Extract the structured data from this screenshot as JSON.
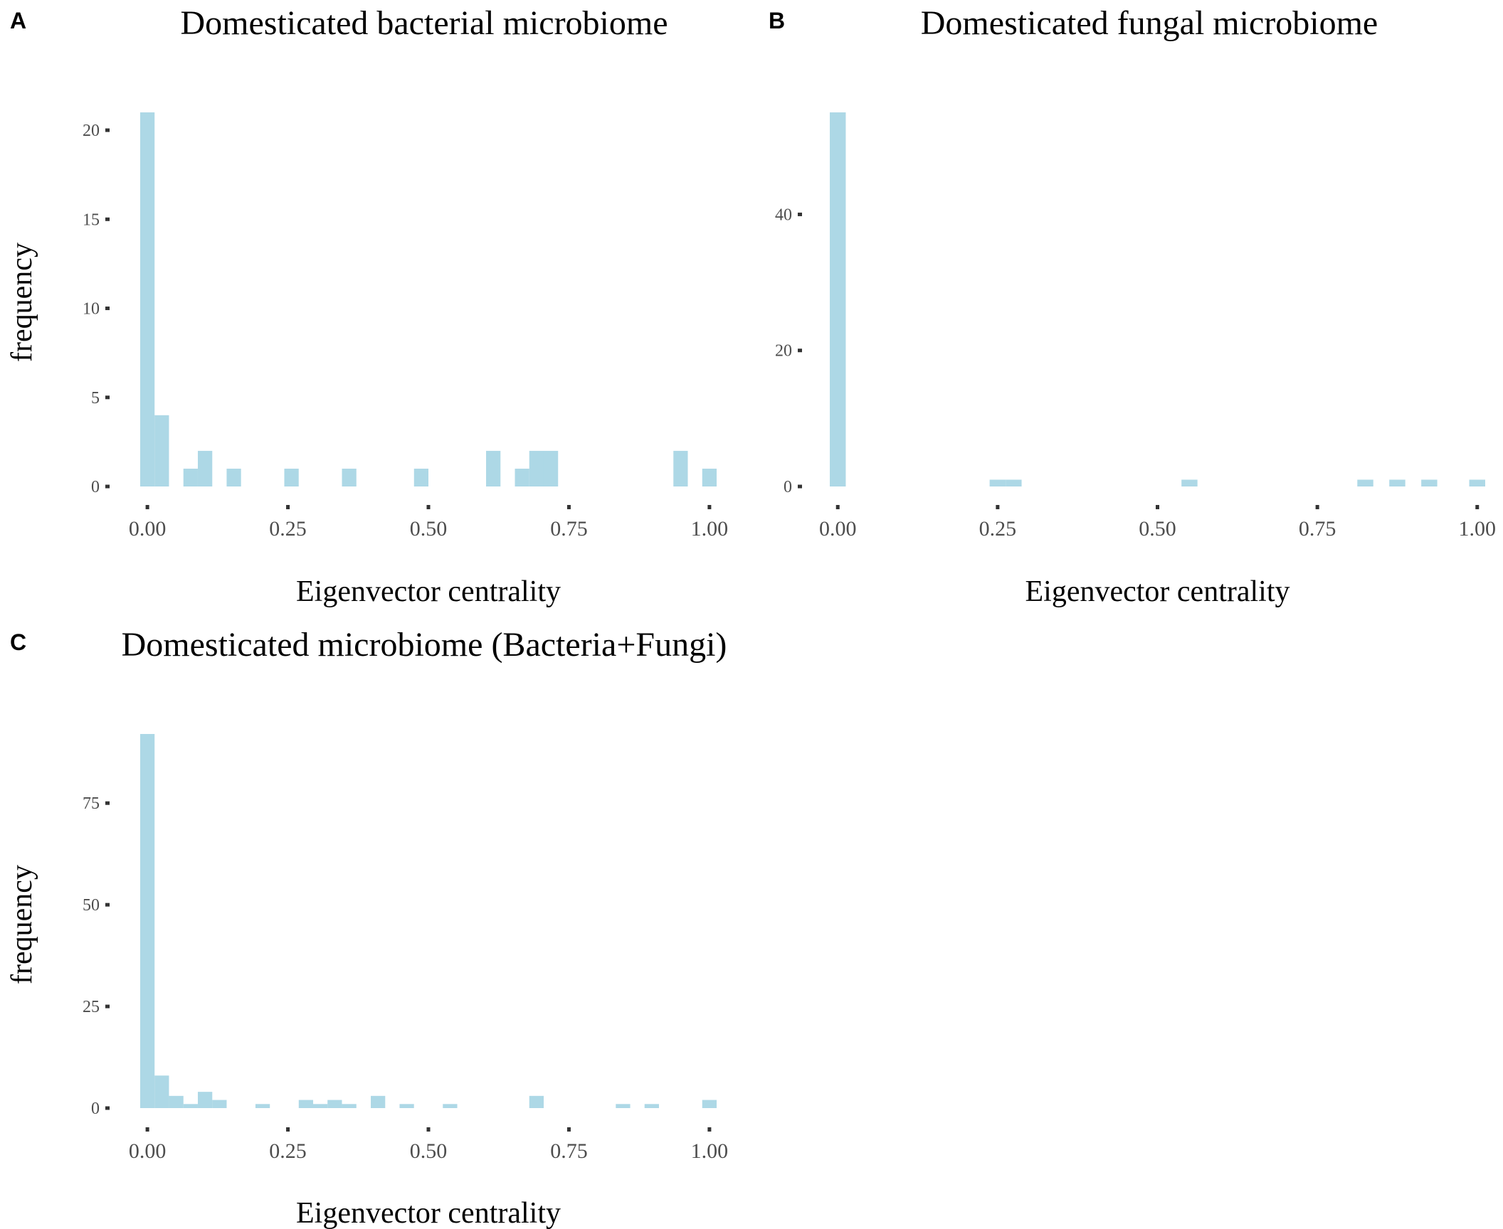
{
  "chart_data": [
    {
      "panel_label": "A",
      "type": "bar",
      "title": "Domesticated bacterial microbiome",
      "xlabel": "Eigenvector centrality",
      "ylabel": "frequency",
      "bin_width": 0.025641,
      "x_range": [
        -0.0128,
        1.0128
      ],
      "ylim": [
        0,
        21
      ],
      "x_ticks": [
        "0.00",
        "0.25",
        "0.50",
        "0.75",
        "1.00"
      ],
      "y_ticks": [
        "0",
        "5",
        "10",
        "15",
        "20"
      ],
      "bar_color": "#add8e6",
      "grid": false,
      "bins": [
        {
          "x": 0.0,
          "count": 21
        },
        {
          "x": 0.0256,
          "count": 4
        },
        {
          "x": 0.0769,
          "count": 1
        },
        {
          "x": 0.1026,
          "count": 2
        },
        {
          "x": 0.1538,
          "count": 1
        },
        {
          "x": 0.2564,
          "count": 1
        },
        {
          "x": 0.359,
          "count": 1
        },
        {
          "x": 0.4872,
          "count": 1
        },
        {
          "x": 0.6154,
          "count": 2
        },
        {
          "x": 0.6667,
          "count": 1
        },
        {
          "x": 0.6923,
          "count": 2
        },
        {
          "x": 0.7179,
          "count": 2
        },
        {
          "x": 0.9487,
          "count": 2
        },
        {
          "x": 1.0,
          "count": 1
        }
      ]
    },
    {
      "panel_label": "B",
      "type": "bar",
      "title": "Domesticated fungal microbiome",
      "xlabel": "Eigenvector centrality",
      "ylabel": "",
      "bin_width": 0.025,
      "x_range": [
        -0.0125,
        1.0125
      ],
      "ylim": [
        0,
        55
      ],
      "x_ticks": [
        "0.00",
        "0.25",
        "0.50",
        "0.75",
        "1.00"
      ],
      "y_ticks": [
        "0",
        "20",
        "40"
      ],
      "bar_color": "#add8e6",
      "grid": false,
      "bins": [
        {
          "x": 0.0,
          "count": 55
        },
        {
          "x": 0.25,
          "count": 1
        },
        {
          "x": 0.275,
          "count": 1
        },
        {
          "x": 0.55,
          "count": 1
        },
        {
          "x": 0.825,
          "count": 1
        },
        {
          "x": 0.875,
          "count": 1
        },
        {
          "x": 0.925,
          "count": 1
        },
        {
          "x": 1.0,
          "count": 1
        }
      ]
    },
    {
      "panel_label": "C",
      "type": "bar",
      "title": "Domesticated microbiome (Bacteria+Fungi)",
      "xlabel": "Eigenvector centrality",
      "ylabel": "frequency",
      "bin_width": 0.025641,
      "x_range": [
        -0.0128,
        1.0128
      ],
      "ylim": [
        0,
        92
      ],
      "x_ticks": [
        "0.00",
        "0.25",
        "0.50",
        "0.75",
        "1.00"
      ],
      "y_ticks": [
        "0",
        "25",
        "50",
        "75"
      ],
      "bar_color": "#add8e6",
      "grid": false,
      "bins": [
        {
          "x": 0.0,
          "count": 92
        },
        {
          "x": 0.0256,
          "count": 8
        },
        {
          "x": 0.0513,
          "count": 3
        },
        {
          "x": 0.0769,
          "count": 1
        },
        {
          "x": 0.1026,
          "count": 4
        },
        {
          "x": 0.1282,
          "count": 2
        },
        {
          "x": 0.2051,
          "count": 1
        },
        {
          "x": 0.2821,
          "count": 2
        },
        {
          "x": 0.3077,
          "count": 1
        },
        {
          "x": 0.3333,
          "count": 2
        },
        {
          "x": 0.359,
          "count": 1
        },
        {
          "x": 0.4103,
          "count": 3
        },
        {
          "x": 0.4615,
          "count": 1
        },
        {
          "x": 0.5385,
          "count": 1
        },
        {
          "x": 0.6923,
          "count": 3
        },
        {
          "x": 0.8462,
          "count": 1
        },
        {
          "x": 0.8974,
          "count": 1
        },
        {
          "x": 1.0,
          "count": 2
        }
      ]
    }
  ]
}
